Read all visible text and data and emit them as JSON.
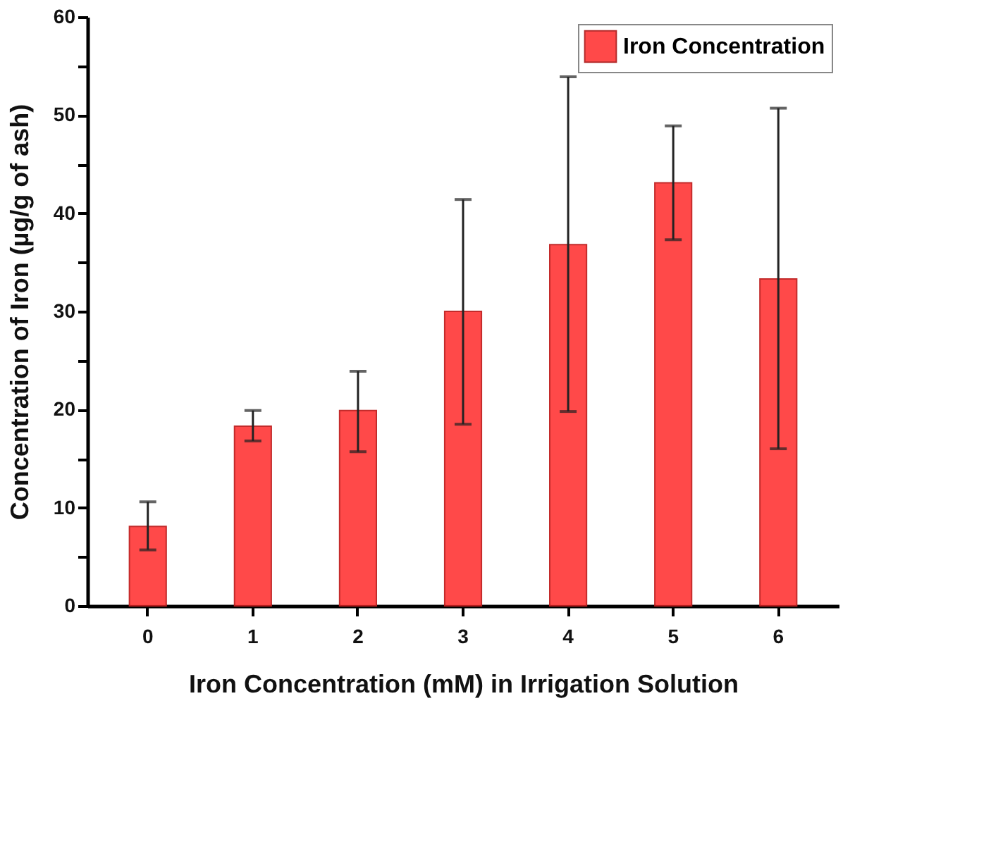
{
  "chart_data": {
    "type": "bar",
    "xlabel": "Iron Concentration (mM) in Irrigation Solution",
    "ylabel": "Concentration of Iron (µg/g of ash)",
    "categories": [
      "0",
      "1",
      "2",
      "3",
      "4",
      "5",
      "6"
    ],
    "series": [
      {
        "name": "Iron Concentration",
        "color": "#ff4040",
        "values": [
          8.1,
          18.3,
          19.9,
          30.0,
          36.8,
          43.1,
          33.3
        ],
        "errors": [
          [
            5.7,
            10.6
          ],
          [
            16.8,
            19.9
          ],
          [
            15.7,
            23.9
          ],
          [
            18.5,
            41.4
          ],
          [
            19.8,
            53.9
          ],
          [
            37.3,
            48.9
          ],
          [
            16.0,
            50.7
          ]
        ]
      }
    ],
    "ylim": [
      0,
      60
    ],
    "yticks": [
      0,
      {
        "value": 5,
        "label": null
      },
      10,
      {
        "value": 15,
        "label": null
      },
      20,
      {
        "value": 25,
        "label": null
      },
      30,
      {
        "value": 35,
        "label": null
      },
      40,
      {
        "value": 45,
        "label": null
      },
      50,
      {
        "value": 55,
        "label": null
      },
      60
    ],
    "legend": "top right",
    "grid": false
  }
}
